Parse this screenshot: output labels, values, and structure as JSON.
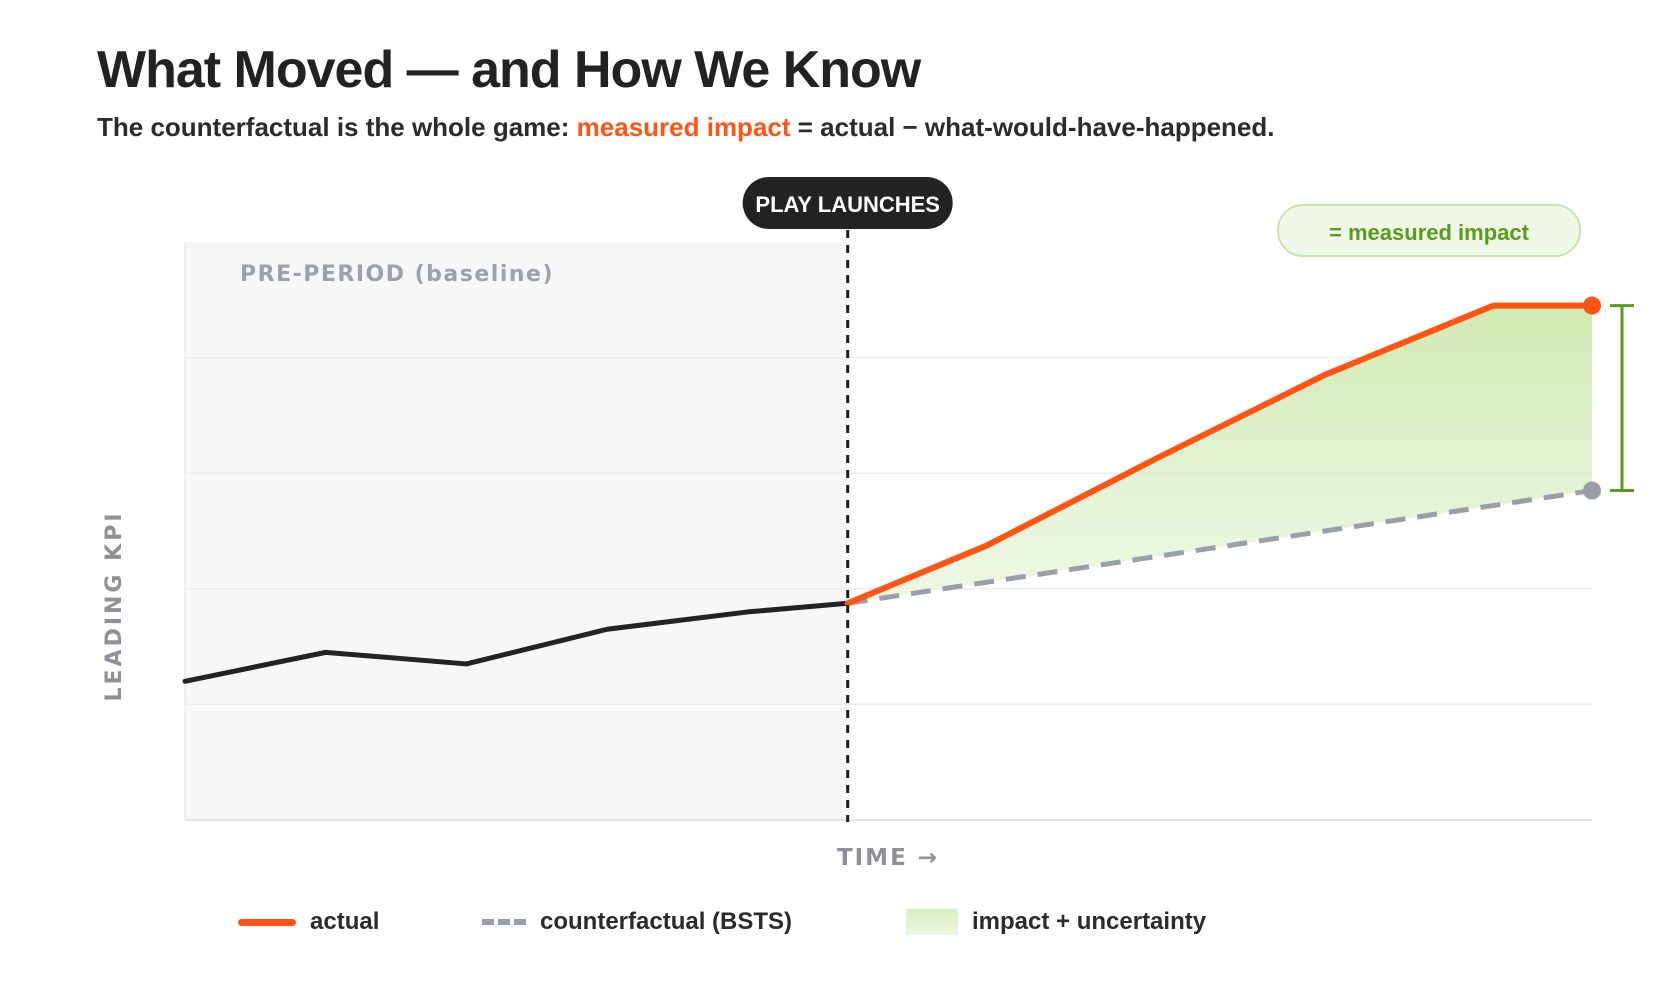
{
  "title": "What Moved — and How We Know",
  "subtitle": {
    "pre": "The counterfactual is the whole game: ",
    "highlight": "measured impact",
    "post": " = actual − what-would-have-happened."
  },
  "colors": {
    "actual": "#ff5413",
    "pre_line": "#232323",
    "counterfactual": "#9a9ea6",
    "impact_fill": "#cfeab3",
    "impact_bracket": "#5a9a1e",
    "pre_period_bg": "#f7f7f7",
    "launch_badge": "#222222"
  },
  "chart_data": {
    "type": "line",
    "title": "What Moved — and How We Know",
    "xlabel": "TIME →",
    "ylabel": "LEADING KPI",
    "xlim": [
      0,
      10
    ],
    "ylim": [
      0,
      10
    ],
    "grid": true,
    "launch_x": 4.71,
    "launch_label": "PLAY LAUNCHES",
    "pre_period_label": "PRE-PERIOD (baseline)",
    "impact_label": "= measured impact",
    "series": [
      {
        "name": "actual",
        "segment": "pre",
        "x": [
          0,
          1,
          2,
          3,
          4,
          4.71
        ],
        "y": [
          2.4,
          2.9,
          2.7,
          3.3,
          3.6,
          3.75
        ]
      },
      {
        "name": "actual",
        "segment": "post",
        "x": [
          4.71,
          5.7,
          6.9,
          8.1,
          9.3,
          10
        ],
        "y": [
          3.75,
          4.75,
          6.25,
          7.7,
          8.9,
          8.9
        ]
      },
      {
        "name": "counterfactual (BSTS)",
        "x": [
          4.71,
          10
        ],
        "y": [
          3.75,
          5.7
        ]
      }
    ],
    "legend": [
      {
        "key": "actual",
        "label": "actual"
      },
      {
        "key": "counterfactual",
        "label": "counterfactual (BSTS)"
      },
      {
        "key": "impact",
        "label": "impact + uncertainty"
      }
    ]
  }
}
